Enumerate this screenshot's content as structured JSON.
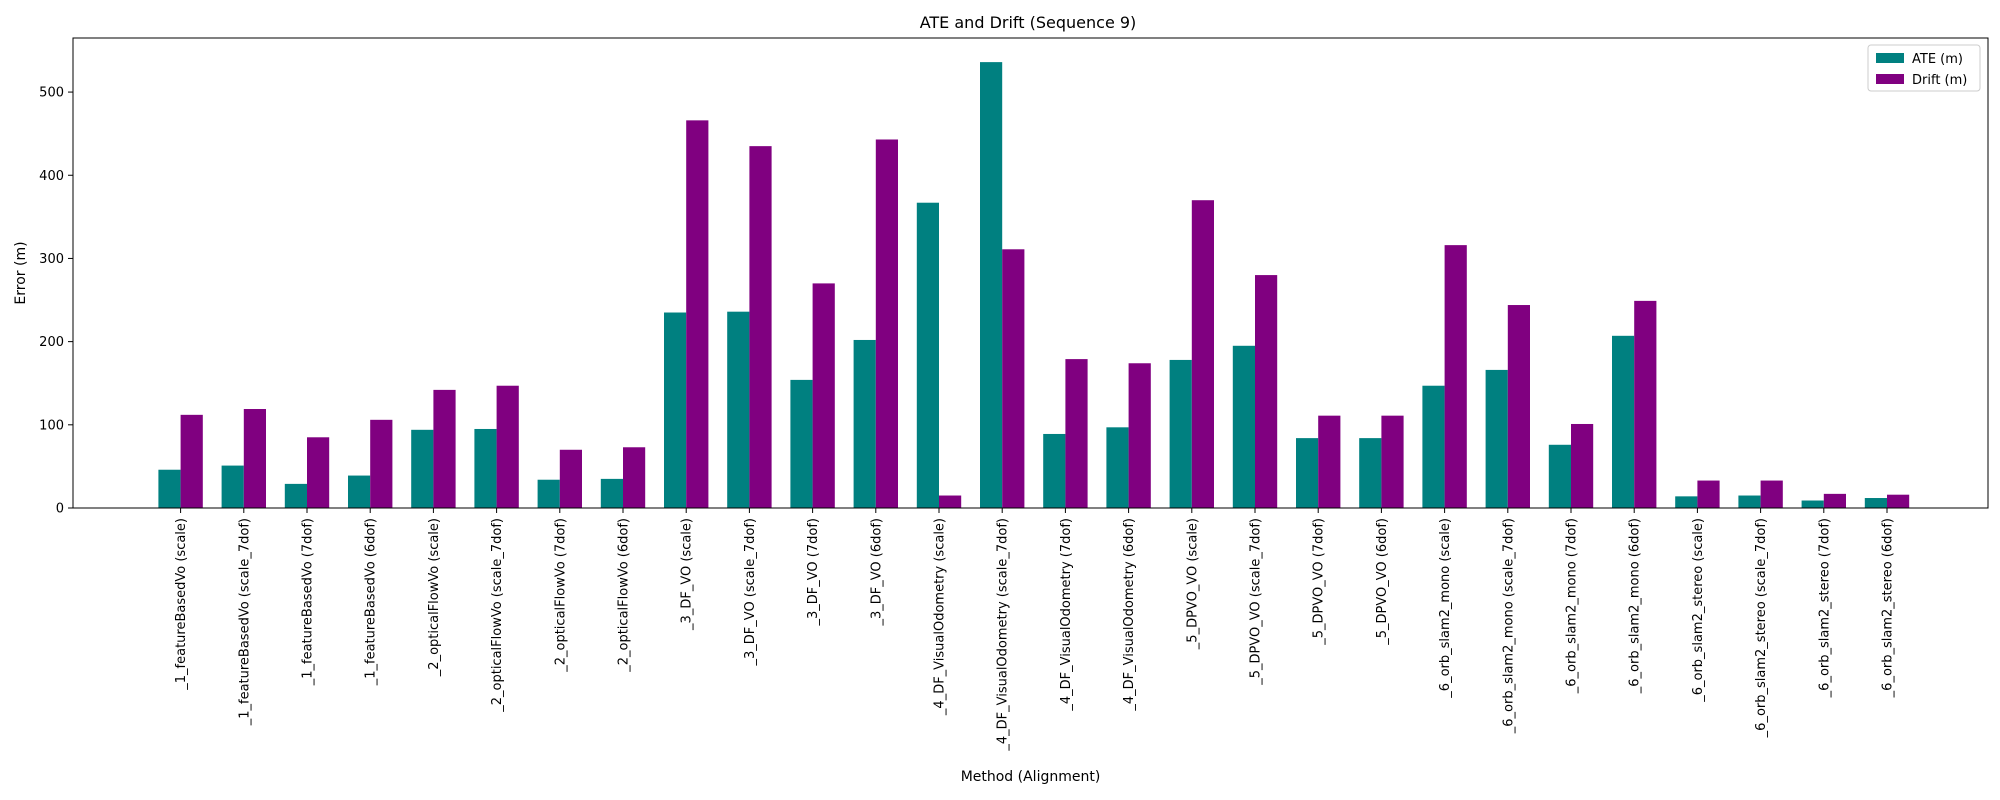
{
  "chart_data": {
    "type": "bar",
    "title": "ATE and Drift (Sequence 9)",
    "xlabel": "Method (Alignment)",
    "ylabel": "Error (m)",
    "ylim": [
      0,
      565
    ],
    "yticks": [
      0,
      100,
      200,
      300,
      400,
      500
    ],
    "grid": false,
    "legend_position": "top-right",
    "categories": [
      "_1_featureBasedVo (scale)",
      "_1_featureBasedVo (scale_7dof)",
      "_1_featureBasedVo (7dof)",
      "_1_featureBasedVo (6dof)",
      "_2_opticalFlowVo (scale)",
      "_2_opticalFlowVo (scale_7dof)",
      "_2_opticalFlowVo (7dof)",
      "_2_opticalFlowVo (6dof)",
      "_3_DF_VO (scale)",
      "_3_DF_VO (scale_7dof)",
      "_3_DF_VO (7dof)",
      "_3_DF_VO (6dof)",
      "_4_DF_VisualOdometry (scale)",
      "_4_DF_VisualOdometry (scale_7dof)",
      "_4_DF_VisualOdometry (7dof)",
      "_4_DF_VisualOdometry (6dof)",
      "_5_DPVO_VO (scale)",
      "_5_DPVO_VO (scale_7dof)",
      "_5_DPVO_VO (7dof)",
      "_5_DPVO_VO (6dof)",
      "_6_orb_slam2_mono (scale)",
      "_6_orb_slam2_mono (scale_7dof)",
      "_6_orb_slam2_mono (7dof)",
      "_6_orb_slam2_mono (6dof)",
      "_6_orb_slam2_stereo (scale)",
      "_6_orb_slam2_stereo (scale_7dof)",
      "_6_orb_slam2_stereo (7dof)",
      "_6_orb_slam2_stereo (6dof)"
    ],
    "series": [
      {
        "name": "ATE (m)",
        "color": "#008080",
        "values": [
          46,
          51,
          29,
          39,
          94,
          95,
          34,
          35,
          235,
          236,
          154,
          202,
          367,
          536,
          89,
          97,
          178,
          195,
          84,
          84,
          147,
          166,
          76,
          207,
          14,
          15,
          9,
          12
        ]
      },
      {
        "name": "Drift (m)",
        "color": "#800080",
        "values": [
          112,
          119,
          85,
          106,
          142,
          147,
          70,
          73,
          466,
          435,
          270,
          443,
          15,
          311,
          179,
          174,
          370,
          280,
          111,
          111,
          316,
          244,
          101,
          249,
          33,
          33,
          17,
          16
        ]
      }
    ]
  }
}
